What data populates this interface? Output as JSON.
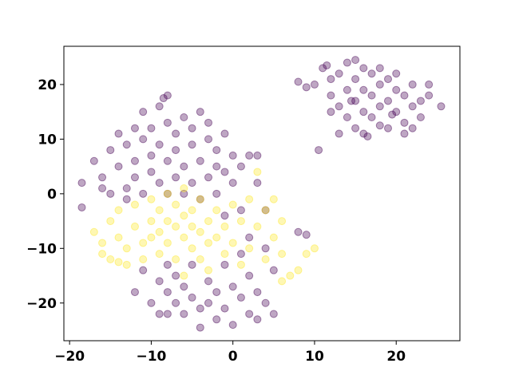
{
  "chart_data": {
    "type": "scatter",
    "title": "",
    "xlabel": "",
    "ylabel": "",
    "xlim": [
      -20.7,
      27.8
    ],
    "ylim": [
      -26.9,
      27.0
    ],
    "grid": false,
    "legend": "none",
    "xticks": [
      -20,
      -10,
      0,
      10,
      20
    ],
    "yticks": [
      -20,
      -10,
      0,
      10,
      20
    ],
    "xtick_labels": [
      "−20",
      "−10",
      "0",
      "10",
      "20"
    ],
    "ytick_labels": [
      "−20",
      "−10",
      "0",
      "10",
      "20"
    ],
    "point_alpha": 0.35,
    "series": [
      {
        "name": "class-0",
        "color": "#440154",
        "points": [
          [
            8,
            20.5
          ],
          [
            9,
            19.5
          ],
          [
            10,
            20
          ],
          [
            11,
            23
          ],
          [
            11.5,
            23.5
          ],
          [
            12,
            21
          ],
          [
            12,
            18
          ],
          [
            13,
            16
          ],
          [
            13,
            22
          ],
          [
            14,
            24
          ],
          [
            14,
            19
          ],
          [
            14,
            14
          ],
          [
            15,
            24.5
          ],
          [
            15,
            21
          ],
          [
            15,
            17
          ],
          [
            15,
            12
          ],
          [
            16,
            23
          ],
          [
            16,
            19
          ],
          [
            16,
            15
          ],
          [
            16,
            11
          ],
          [
            17,
            22
          ],
          [
            17,
            18
          ],
          [
            17,
            14
          ],
          [
            18,
            20
          ],
          [
            18,
            16
          ],
          [
            18,
            23
          ],
          [
            19,
            21
          ],
          [
            19,
            17
          ],
          [
            19,
            12
          ],
          [
            20,
            19
          ],
          [
            20,
            15
          ],
          [
            20,
            22
          ],
          [
            21,
            18
          ],
          [
            21,
            13
          ],
          [
            22,
            20
          ],
          [
            22,
            16
          ],
          [
            22,
            12
          ],
          [
            23,
            17
          ],
          [
            23,
            14
          ],
          [
            24,
            18
          ],
          [
            24,
            20
          ],
          [
            25.5,
            16
          ],
          [
            13,
            11
          ],
          [
            16.5,
            10.5
          ],
          [
            10.5,
            8
          ],
          [
            12,
            15
          ],
          [
            18,
            12.5
          ],
          [
            21,
            11
          ],
          [
            14.5,
            17
          ],
          [
            19.5,
            14.5
          ],
          [
            -18.5,
            2
          ],
          [
            -18.5,
            -2.5
          ],
          [
            -17,
            6
          ],
          [
            -16,
            3
          ],
          [
            -15,
            0
          ],
          [
            -15,
            8
          ],
          [
            -14,
            11
          ],
          [
            -14,
            5
          ],
          [
            -13,
            1
          ],
          [
            -13,
            9
          ],
          [
            -12,
            12
          ],
          [
            -12,
            6
          ],
          [
            -12,
            3
          ],
          [
            -11,
            0
          ],
          [
            -11,
            15
          ],
          [
            -11,
            10
          ],
          [
            -10,
            7
          ],
          [
            -10,
            4
          ],
          [
            -10,
            12
          ],
          [
            -9,
            16
          ],
          [
            -9,
            2
          ],
          [
            -9,
            9
          ],
          [
            -8,
            18
          ],
          [
            -8,
            13
          ],
          [
            -8,
            6
          ],
          [
            -8,
            0
          ],
          [
            -7,
            11
          ],
          [
            -7,
            8
          ],
          [
            -7,
            3
          ],
          [
            -6,
            14
          ],
          [
            -6,
            5
          ],
          [
            -6,
            0
          ],
          [
            -5,
            12
          ],
          [
            -5,
            9
          ],
          [
            -5,
            2
          ],
          [
            -4,
            15
          ],
          [
            -4,
            6
          ],
          [
            -4,
            -1
          ],
          [
            -3,
            13
          ],
          [
            -3,
            10
          ],
          [
            -3,
            3
          ],
          [
            -2,
            8
          ],
          [
            -2,
            5
          ],
          [
            -2,
            0
          ],
          [
            -1,
            11
          ],
          [
            -1,
            4
          ],
          [
            0,
            7
          ],
          [
            0,
            2
          ],
          [
            1,
            5
          ],
          [
            2,
            7
          ],
          [
            3,
            2
          ],
          [
            -8.5,
            17.5
          ],
          [
            -13,
            -1
          ],
          [
            -16,
            1
          ],
          [
            -11,
            -14
          ],
          [
            -10,
            -20
          ],
          [
            -9,
            -16
          ],
          [
            -9,
            -22
          ],
          [
            -8,
            -13
          ],
          [
            -8,
            -18
          ],
          [
            -7,
            -20
          ],
          [
            -7,
            -15
          ],
          [
            -6,
            -22
          ],
          [
            -6,
            -17
          ],
          [
            -5,
            -13
          ],
          [
            -5,
            -19
          ],
          [
            -4,
            -24.5
          ],
          [
            -4,
            -21
          ],
          [
            -3,
            -16
          ],
          [
            -3,
            -20
          ],
          [
            -2,
            -18
          ],
          [
            -2,
            -23
          ],
          [
            -1,
            -13
          ],
          [
            -1,
            -21
          ],
          [
            0,
            -17
          ],
          [
            0,
            -24
          ],
          [
            1,
            -19
          ],
          [
            1,
            -11
          ],
          [
            2,
            -22
          ],
          [
            2,
            -8
          ],
          [
            2,
            -15
          ],
          [
            3,
            -18
          ],
          [
            3,
            -23
          ],
          [
            4,
            -10
          ],
          [
            4,
            -20
          ],
          [
            5,
            -14
          ],
          [
            5,
            -22
          ],
          [
            -8,
            -22
          ],
          [
            -1,
            -4
          ],
          [
            8,
            -7
          ],
          [
            9,
            -7.5
          ],
          [
            3,
            7
          ],
          [
            4,
            -3
          ],
          [
            -12,
            -18
          ],
          [
            1,
            -3
          ]
        ]
      },
      {
        "name": "class-1",
        "color": "#fde725",
        "points": [
          [
            -17,
            -7
          ],
          [
            -16,
            -9
          ],
          [
            -15,
            -5
          ],
          [
            -15,
            -12
          ],
          [
            -14,
            -8
          ],
          [
            -14,
            -3
          ],
          [
            -13,
            -13
          ],
          [
            -13,
            -10
          ],
          [
            -12,
            -6
          ],
          [
            -12,
            -2
          ],
          [
            -11,
            -9
          ],
          [
            -11,
            -12
          ],
          [
            -10,
            -5
          ],
          [
            -10,
            -1
          ],
          [
            -10,
            -8
          ],
          [
            -9,
            -3
          ],
          [
            -9,
            -7
          ],
          [
            -9,
            -11
          ],
          [
            -8,
            0
          ],
          [
            -8,
            -5
          ],
          [
            -8,
            -9
          ],
          [
            -7,
            -2
          ],
          [
            -7,
            -6
          ],
          [
            -7,
            -12
          ],
          [
            -6,
            -4
          ],
          [
            -6,
            -8
          ],
          [
            -6,
            1
          ],
          [
            -5,
            -6
          ],
          [
            -5,
            -10
          ],
          [
            -5,
            -3
          ],
          [
            -4,
            -7
          ],
          [
            -4,
            -12
          ],
          [
            -4,
            -1
          ],
          [
            -3,
            -5
          ],
          [
            -3,
            -9
          ],
          [
            -3,
            -14
          ],
          [
            -2,
            -3
          ],
          [
            -2,
            -8
          ],
          [
            -1,
            -6
          ],
          [
            -1,
            -11
          ],
          [
            0,
            -2
          ],
          [
            0,
            -9
          ],
          [
            1,
            -5
          ],
          [
            1,
            -13
          ],
          [
            2,
            -1
          ],
          [
            2,
            -10
          ],
          [
            3,
            4
          ],
          [
            3,
            -6
          ],
          [
            4,
            -3
          ],
          [
            4,
            -12
          ],
          [
            5,
            -8
          ],
          [
            5,
            -1
          ],
          [
            6,
            -11
          ],
          [
            6,
            -5
          ],
          [
            7,
            -15
          ],
          [
            8,
            -14
          ],
          [
            9,
            -11
          ],
          [
            10,
            -10
          ],
          [
            6,
            -16
          ],
          [
            -6,
            -15
          ],
          [
            -14,
            -12.5
          ],
          [
            -16,
            -11
          ]
        ]
      }
    ]
  }
}
